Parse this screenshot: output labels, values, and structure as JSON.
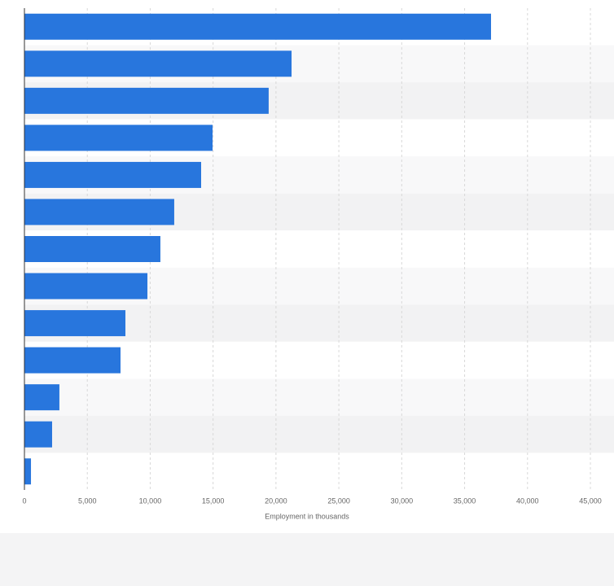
{
  "chart_data": {
    "type": "barh",
    "xlabel": "Employment in thousands",
    "categories": [
      null,
      null,
      null,
      null,
      null,
      null,
      null,
      null,
      null,
      null,
      null,
      null,
      null
    ],
    "values": [
      37100,
      21240,
      19420,
      14960,
      14050,
      11910,
      10810,
      9780,
      8030,
      7640,
      2780,
      2200,
      520
    ],
    "color": "#2876dd",
    "xlim": [
      0,
      45000
    ],
    "xticks": [
      0,
      {
        "value": 5000,
        "label": "5,000"
      },
      {
        "value": 10000,
        "label": "10,000"
      },
      {
        "value": 15000,
        "label": "15,000"
      },
      {
        "value": 20000,
        "label": "20,000"
      },
      {
        "value": 25000,
        "label": "25,000"
      },
      {
        "value": 30000,
        "label": "30,000"
      },
      {
        "value": 35000,
        "label": "35,000"
      },
      {
        "value": 40000,
        "label": "40,000"
      },
      {
        "value": 45000,
        "label": "45,000"
      }
    ],
    "grid": true
  }
}
